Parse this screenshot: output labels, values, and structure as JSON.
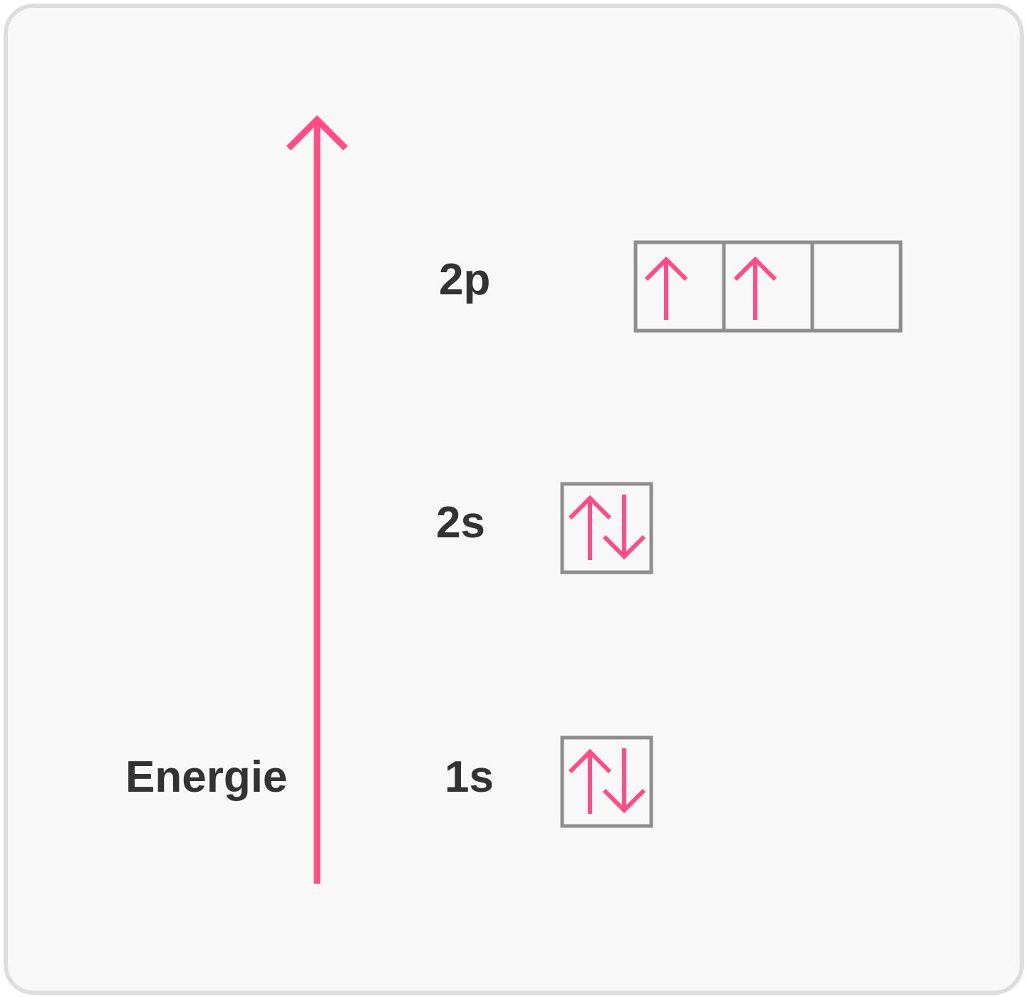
{
  "axis": {
    "label": "Energie",
    "color": "#ff4d88"
  },
  "orbitals": [
    {
      "label": "2p",
      "boxes": [
        {
          "electrons": [
            "up"
          ]
        },
        {
          "electrons": [
            "up"
          ]
        },
        {
          "electrons": []
        }
      ]
    },
    {
      "label": "2s",
      "boxes": [
        {
          "electrons": [
            "up",
            "down"
          ]
        }
      ]
    },
    {
      "label": "1s",
      "boxes": [
        {
          "electrons": [
            "up",
            "down"
          ]
        }
      ]
    }
  ],
  "colors": {
    "background": "#f8f8f8",
    "border": "#dddddd",
    "box_stroke": "#8e8e8e",
    "electron": "#ff4d88",
    "text": "#333333"
  }
}
